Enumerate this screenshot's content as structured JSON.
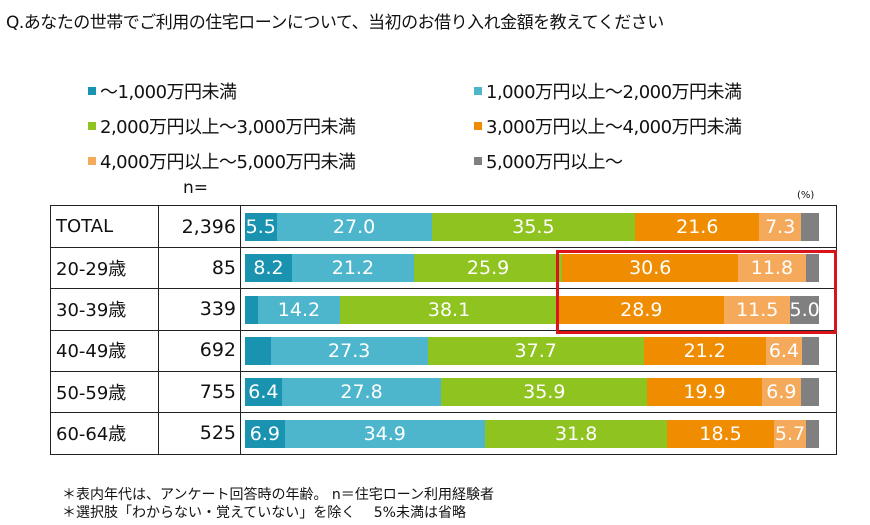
{
  "chart_data": {
    "type": "bar",
    "orientation": "horizontal-stacked-100",
    "title": "Q.あなたの世帯でご利用の住宅ローンについて、当初のお借り入れ金額を教えてください",
    "unit_label": "(%)",
    "n_header": "n=",
    "categories": [
      "TOTAL",
      "20-29歳",
      "30-39歳",
      "40-49歳",
      "50-59歳",
      "60-64歳"
    ],
    "n": [
      "2,396",
      "85",
      "339",
      "692",
      "755",
      "525"
    ],
    "series": [
      {
        "name": "～1,000万円未満",
        "color": "#1a93b0",
        "values": [
          5.5,
          8.2,
          2.3,
          4.5,
          6.4,
          6.9
        ],
        "labels": [
          "5.5",
          "8.2",
          "",
          "",
          "6.4",
          "6.9"
        ]
      },
      {
        "name": "1,000万円以上～2,000万円未満",
        "color": "#4db6cc",
        "values": [
          27.0,
          21.2,
          14.2,
          27.3,
          27.8,
          34.9
        ],
        "labels": [
          "27.0",
          "21.2",
          "14.2",
          "27.3",
          "27.8",
          "34.9"
        ]
      },
      {
        "name": "2,000万円以上～3,000万円未満",
        "color": "#8fc31f",
        "values": [
          35.5,
          25.9,
          38.1,
          37.7,
          35.9,
          31.8
        ],
        "labels": [
          "35.5",
          "25.9",
          "38.1",
          "37.7",
          "35.9",
          "31.8"
        ]
      },
      {
        "name": "3,000万円以上～4,000万円未満",
        "color": "#f08c00",
        "values": [
          21.6,
          30.6,
          28.9,
          21.2,
          19.9,
          18.5
        ],
        "labels": [
          "21.6",
          "30.6",
          "28.9",
          "21.2",
          "19.9",
          "18.5"
        ]
      },
      {
        "name": "4,000万円以上～5,000万円未満",
        "color": "#f5a95a",
        "values": [
          7.3,
          11.8,
          11.5,
          6.4,
          6.9,
          5.7
        ],
        "labels": [
          "7.3",
          "11.8",
          "11.5",
          "6.4",
          "6.9",
          "5.7"
        ]
      },
      {
        "name": "5,000万円以上～",
        "color": "#808080",
        "values": [
          3.1,
          2.3,
          5.0,
          2.9,
          3.1,
          2.2
        ],
        "labels": [
          "",
          "",
          "5.0",
          "",
          "",
          ""
        ]
      }
    ],
    "highlight_color": "#d9141b"
  },
  "notes": [
    "＊表内年代は、アンケート回答時の年齢。 n＝住宅ローン利用経験者",
    "＊選択肢「わからない・覚えていない」を除く　 5%未満は省略"
  ]
}
